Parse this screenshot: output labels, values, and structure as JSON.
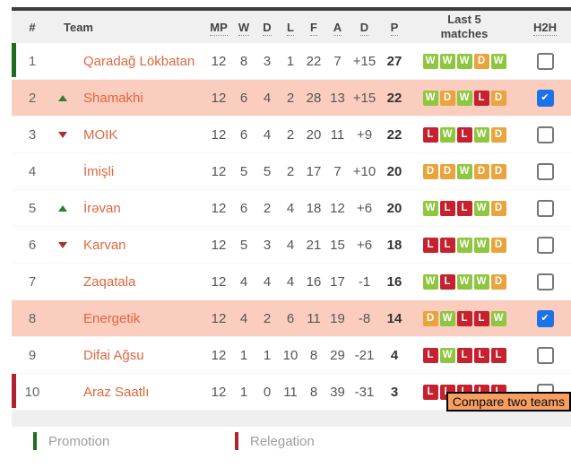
{
  "header": {
    "pos_label": "#",
    "team_label": "Team",
    "mp_label": "MP",
    "w_label": "W",
    "d_label": "D",
    "l_label": "L",
    "f_label": "F",
    "a_label": "A",
    "gd_label": "D",
    "p_label": "P",
    "last5_label": "Last 5 matches",
    "h2h_label": "H2H"
  },
  "rows": [
    {
      "pos": "1",
      "movement": "none",
      "team": "Qaradağ Lökbatan",
      "mp": "12",
      "w": "8",
      "d": "3",
      "l": "1",
      "f": "22",
      "a": "7",
      "gd": "+15",
      "p": "27",
      "last5": [
        "W",
        "W",
        "W",
        "D",
        "W"
      ],
      "h2h_checked": false,
      "highlight": false,
      "indicator": "promotion"
    },
    {
      "pos": "2",
      "movement": "up",
      "team": "Shamakhi",
      "mp": "12",
      "w": "6",
      "d": "4",
      "l": "2",
      "f": "28",
      "a": "13",
      "gd": "+15",
      "p": "22",
      "last5": [
        "W",
        "D",
        "W",
        "L",
        "D"
      ],
      "h2h_checked": true,
      "highlight": true,
      "indicator": ""
    },
    {
      "pos": "3",
      "movement": "down",
      "team": "MOIK",
      "mp": "12",
      "w": "6",
      "d": "4",
      "l": "2",
      "f": "20",
      "a": "11",
      "gd": "+9",
      "p": "22",
      "last5": [
        "L",
        "W",
        "L",
        "W",
        "D"
      ],
      "h2h_checked": false,
      "highlight": false,
      "indicator": ""
    },
    {
      "pos": "4",
      "movement": "none",
      "team": "İmişli",
      "mp": "12",
      "w": "5",
      "d": "5",
      "l": "2",
      "f": "17",
      "a": "7",
      "gd": "+10",
      "p": "20",
      "last5": [
        "D",
        "D",
        "W",
        "D",
        "D"
      ],
      "h2h_checked": false,
      "highlight": false,
      "indicator": ""
    },
    {
      "pos": "5",
      "movement": "up",
      "team": "İrəvan",
      "mp": "12",
      "w": "6",
      "d": "2",
      "l": "4",
      "f": "18",
      "a": "12",
      "gd": "+6",
      "p": "20",
      "last5": [
        "W",
        "L",
        "L",
        "W",
        "D"
      ],
      "h2h_checked": false,
      "highlight": false,
      "indicator": ""
    },
    {
      "pos": "6",
      "movement": "down",
      "team": "Karvan",
      "mp": "12",
      "w": "5",
      "d": "3",
      "l": "4",
      "f": "21",
      "a": "15",
      "gd": "+6",
      "p": "18",
      "last5": [
        "L",
        "L",
        "W",
        "W",
        "D"
      ],
      "h2h_checked": false,
      "highlight": false,
      "indicator": ""
    },
    {
      "pos": "7",
      "movement": "none",
      "team": "Zaqatala",
      "mp": "12",
      "w": "4",
      "d": "4",
      "l": "4",
      "f": "16",
      "a": "17",
      "gd": "-1",
      "p": "16",
      "last5": [
        "W",
        "L",
        "W",
        "W",
        "D"
      ],
      "h2h_checked": false,
      "highlight": false,
      "indicator": ""
    },
    {
      "pos": "8",
      "movement": "none",
      "team": "Energetik",
      "mp": "12",
      "w": "4",
      "d": "2",
      "l": "6",
      "f": "11",
      "a": "19",
      "gd": "-8",
      "p": "14",
      "last5": [
        "D",
        "W",
        "L",
        "L",
        "W"
      ],
      "h2h_checked": true,
      "highlight": true,
      "indicator": ""
    },
    {
      "pos": "9",
      "movement": "none",
      "team": "Difai Ağsu",
      "mp": "12",
      "w": "1",
      "d": "1",
      "l": "10",
      "f": "8",
      "a": "29",
      "gd": "-21",
      "p": "4",
      "last5": [
        "L",
        "W",
        "L",
        "L",
        "L"
      ],
      "h2h_checked": false,
      "highlight": false,
      "indicator": ""
    },
    {
      "pos": "10",
      "movement": "none",
      "team": "Araz Saatlı",
      "mp": "12",
      "w": "1",
      "d": "0",
      "l": "11",
      "f": "8",
      "a": "39",
      "gd": "-31",
      "p": "3",
      "last5": [
        "L",
        "L",
        "L",
        "L",
        "L"
      ],
      "h2h_checked": false,
      "highlight": false,
      "indicator": "relegation"
    }
  ],
  "footer": {
    "compare_tooltip_label": "Compare two teams"
  },
  "legend": [
    {
      "label": "Promotion",
      "color": "#1b6e1b"
    },
    {
      "label": "Relegation",
      "color": "#b0232d"
    }
  ],
  "colors": {
    "team_link": "#e0673d",
    "row_highlight": "#fbcdbf",
    "win_badge": "#8ec63f",
    "draw_badge": "#eaa43d",
    "loss_badge": "#c5212e",
    "promotion_bar": "#1b6e1b",
    "relegation_bar": "#b0232d",
    "checkbox_checked": "#1a73e8",
    "tooltip_bg": "#f79e61",
    "header_bg": "#f0f0f0"
  }
}
